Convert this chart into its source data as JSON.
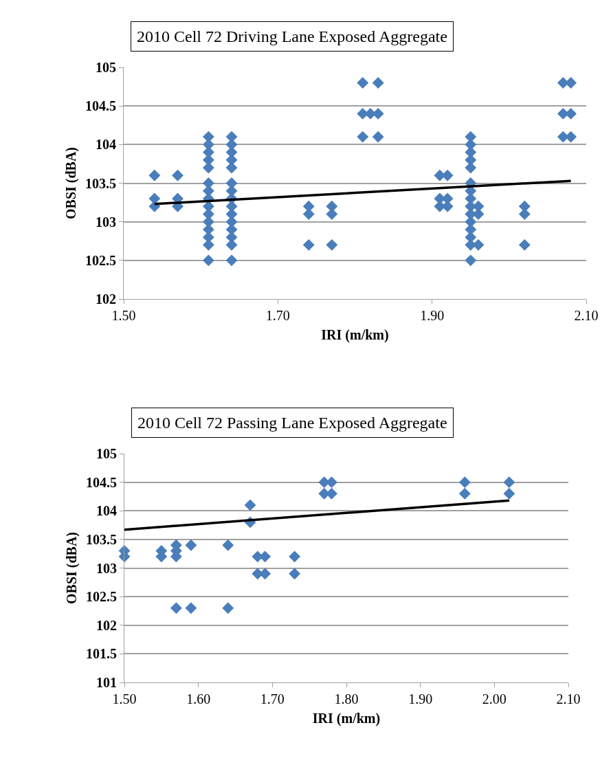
{
  "chart_data": [
    {
      "type": "scatter",
      "title": "2010 Cell 72 Driving Lane Exposed Aggregate",
      "xlabel": "IRI (m/km)",
      "ylabel": "OBSI (dBA)",
      "xlim": [
        1.5,
        2.1
      ],
      "xticks": [
        {
          "value": 1.5,
          "label": "1.50"
        },
        {
          "value": 1.7,
          "label": "1.70"
        },
        {
          "value": 1.9,
          "label": "1.90"
        },
        {
          "value": 2.1,
          "label": "2.10"
        }
      ],
      "ylim": [
        102,
        105
      ],
      "yticks": [
        102,
        102.5,
        103,
        103.5,
        104,
        104.5,
        105
      ],
      "grid": "y",
      "series": [
        {
          "marker": "diamond",
          "color": "#4a7ebb",
          "x": [
            1.54,
            1.54,
            1.54,
            1.57,
            1.57,
            1.57,
            1.61,
            1.61,
            1.61,
            1.61,
            1.61,
            1.61,
            1.61,
            1.61,
            1.61,
            1.61,
            1.61,
            1.61,
            1.61,
            1.61,
            1.61,
            1.64,
            1.64,
            1.64,
            1.64,
            1.64,
            1.64,
            1.64,
            1.64,
            1.64,
            1.64,
            1.64,
            1.64,
            1.64,
            1.64,
            1.64,
            1.74,
            1.74,
            1.74,
            1.77,
            1.77,
            1.77,
            1.81,
            1.81,
            1.81,
            1.82,
            1.83,
            1.83,
            1.83,
            1.91,
            1.91,
            1.91,
            1.92,
            1.92,
            1.92,
            1.95,
            1.95,
            1.95,
            1.95,
            1.95,
            1.95,
            1.95,
            1.95,
            1.95,
            1.95,
            1.95,
            1.95,
            1.95,
            1.95,
            1.95,
            1.96,
            1.96,
            1.96,
            2.02,
            2.02,
            2.02,
            2.07,
            2.07,
            2.07,
            2.08,
            2.08,
            2.08
          ],
          "values": [
            103.6,
            103.3,
            103.2,
            103.6,
            103.3,
            103.2,
            104.1,
            104.0,
            103.9,
            103.8,
            103.7,
            103.5,
            103.4,
            103.3,
            103.2,
            103.1,
            103.0,
            102.9,
            102.8,
            102.7,
            102.5,
            104.1,
            104.0,
            103.9,
            103.8,
            103.7,
            103.5,
            103.4,
            103.3,
            103.2,
            103.1,
            103.0,
            102.9,
            102.8,
            102.7,
            102.5,
            103.2,
            103.1,
            102.7,
            103.2,
            103.1,
            102.7,
            104.8,
            104.4,
            104.1,
            104.4,
            104.8,
            104.4,
            104.1,
            103.6,
            103.3,
            103.2,
            103.6,
            103.3,
            103.2,
            104.1,
            104.0,
            103.9,
            103.8,
            103.7,
            103.5,
            103.4,
            103.3,
            103.2,
            103.1,
            103.0,
            102.9,
            102.8,
            102.7,
            102.5,
            103.2,
            103.1,
            102.7,
            103.2,
            103.1,
            102.7,
            104.8,
            104.4,
            104.1,
            104.8,
            104.4,
            104.1
          ]
        },
        {
          "type": "line",
          "marker": "none",
          "color": "#000000",
          "x": [
            1.54,
            2.08
          ],
          "values": [
            103.23,
            103.53
          ]
        }
      ]
    },
    {
      "type": "scatter",
      "title": "2010 Cell 72 Passing Lane Exposed Aggregate",
      "xlabel": "IRI (m/km)",
      "ylabel": "OBSI (dBA)",
      "xlim": [
        1.5,
        2.1
      ],
      "xticks": [
        {
          "value": 1.5,
          "label": "1.50"
        },
        {
          "value": 1.6,
          "label": "1.60"
        },
        {
          "value": 1.7,
          "label": "1.70"
        },
        {
          "value": 1.8,
          "label": "1.80"
        },
        {
          "value": 1.9,
          "label": "1.90"
        },
        {
          "value": 2.0,
          "label": "2.00"
        },
        {
          "value": 2.1,
          "label": "2.10"
        }
      ],
      "ylim": [
        101,
        105
      ],
      "yticks": [
        101,
        101.5,
        102,
        102.5,
        103,
        103.5,
        104,
        104.5,
        105
      ],
      "grid": "y",
      "series": [
        {
          "marker": "diamond",
          "color": "#4a7ebb",
          "x": [
            1.5,
            1.5,
            1.55,
            1.55,
            1.57,
            1.57,
            1.57,
            1.57,
            1.59,
            1.59,
            1.64,
            1.64,
            1.67,
            1.67,
            1.68,
            1.68,
            1.69,
            1.69,
            1.73,
            1.73,
            1.77,
            1.77,
            1.78,
            1.78,
            1.96,
            1.96,
            2.02,
            2.02
          ],
          "values": [
            103.3,
            103.2,
            103.3,
            103.2,
            103.4,
            103.3,
            103.2,
            102.3,
            103.4,
            102.3,
            103.4,
            102.3,
            104.1,
            103.8,
            103.2,
            102.9,
            103.2,
            102.9,
            103.2,
            102.9,
            104.5,
            104.3,
            104.5,
            104.3,
            104.5,
            104.3,
            104.5,
            104.3
          ]
        },
        {
          "type": "line",
          "marker": "none",
          "color": "#000000",
          "x": [
            1.5,
            2.02
          ],
          "values": [
            103.67,
            104.18
          ]
        }
      ]
    }
  ]
}
